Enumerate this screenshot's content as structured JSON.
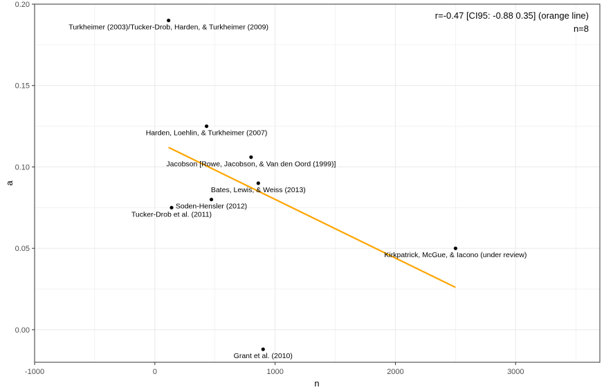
{
  "chart_data": {
    "type": "scatter",
    "xlabel": "n",
    "ylabel": "a",
    "xlim": [
      -1000,
      3700
    ],
    "ylim": [
      -0.02,
      0.2
    ],
    "x_ticks": [
      -1000,
      0,
      1000,
      2000,
      3000
    ],
    "x_tick_labels": [
      "-1000",
      "0",
      "1000",
      "2000",
      "3000"
    ],
    "y_ticks": [
      0.0,
      0.05,
      0.1,
      0.15,
      0.2
    ],
    "y_tick_labels": [
      "0.00",
      "0.05",
      "0.10",
      "0.15",
      "0.20"
    ],
    "grid": true,
    "points": [
      {
        "label": "Turkheimer (2003)/Tucker-Drob, Harden, & Turkheimer (2009)",
        "x": 114,
        "y": 0.19
      },
      {
        "label": "Harden, Loehlin, & Turkheimer (2007)",
        "x": 430,
        "y": 0.125
      },
      {
        "label": "Jacobson [Rowe, Jacobson, & Van den Oord (1999)]",
        "x": 800,
        "y": 0.106
      },
      {
        "label": "Bates, Lewis, & Weiss (2013)",
        "x": 860,
        "y": 0.09
      },
      {
        "label": "Soden-Hensler (2012)",
        "x": 470,
        "y": 0.08
      },
      {
        "label": "Tucker-Drob et al. (2011)",
        "x": 139,
        "y": 0.075
      },
      {
        "label": "Kirkpatrick, McGue, & Iacono (under review)",
        "x": 2500,
        "y": 0.05
      },
      {
        "label": "Grant et al. (2010)",
        "x": 900,
        "y": -0.012
      }
    ],
    "fit_line": {
      "x": [
        114,
        2500
      ],
      "y": [
        0.112,
        0.026
      ],
      "color": "#FFA500"
    },
    "annotations": [
      "r=-0.47 [CI95: -0.88 0.35] (orange line)",
      "n=8"
    ],
    "colors": {
      "points": "#000000",
      "grid": "#ebebeb",
      "panel_border": "#333333"
    }
  }
}
